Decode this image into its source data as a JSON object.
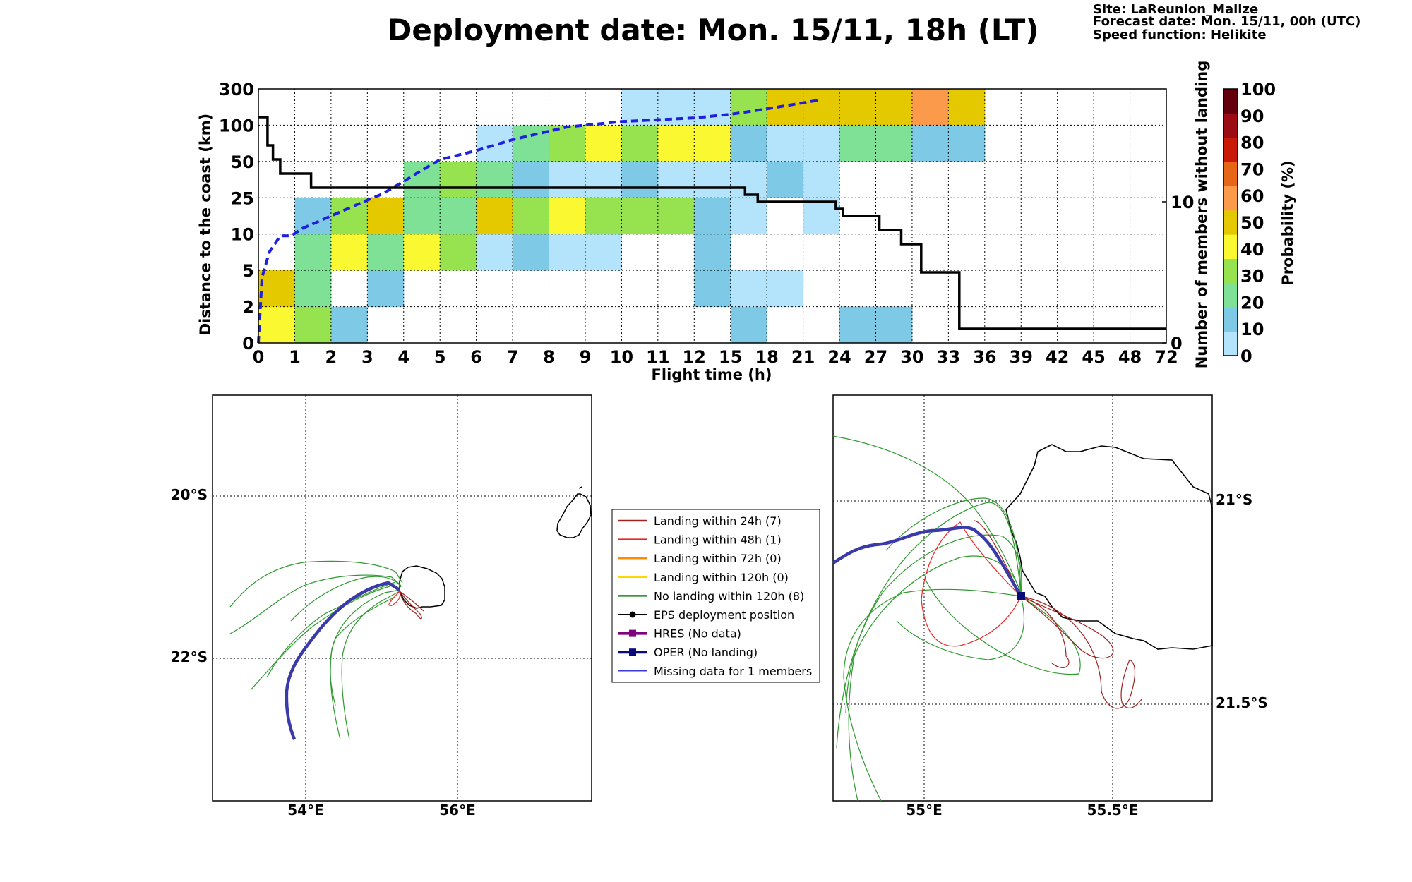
{
  "header": {
    "title": "Deployment date: Mon. 15/11, 18h (LT)",
    "site": "Site: LaReunion_Malize",
    "forecast": "Forecast date: Mon. 15/11, 00h (UTC)",
    "speed": "Speed function: Helikite"
  },
  "chart_data": [
    {
      "type": "heatmap",
      "xlabel": "Flight time (h)",
      "ylabel": "Distance to the coast (km)",
      "ylabel_right": "Number of members without landing",
      "colorbar_label": "Probability (%)",
      "x_ticks": [
        "0",
        "1",
        "2",
        "3",
        "4",
        "5",
        "6",
        "7",
        "8",
        "9",
        "10",
        "11",
        "12",
        "15",
        "18",
        "21",
        "24",
        "27",
        "30",
        "33",
        "36",
        "39",
        "42",
        "45",
        "48",
        "72"
      ],
      "y_ticks": [
        "0",
        "2",
        "5",
        "10",
        "25",
        "50",
        "100",
        "300"
      ],
      "y2_ticks": [
        "0",
        "10"
      ],
      "y2_range": [
        0,
        18
      ],
      "colorbar_ticks": [
        "0",
        "10",
        "20",
        "30",
        "40",
        "50",
        "60",
        "70",
        "80",
        "90",
        "100"
      ],
      "colorbar_colors": [
        "#b3e4fb",
        "#7ecae6",
        "#7fe196",
        "#97e24f",
        "#faf830",
        "#e4c900",
        "#fb9a4a",
        "#e76517",
        "#c91a08",
        "#9b0c14",
        "#63000c"
      ],
      "grid": true,
      "cells": [
        {
          "x": 0,
          "y": 0,
          "p": 40
        },
        {
          "x": 0,
          "y": 1,
          "p": 50
        },
        {
          "x": 1,
          "y": 0,
          "p": 30
        },
        {
          "x": 1,
          "y": 1,
          "p": 20
        },
        {
          "x": 1,
          "y": 2,
          "p": 20
        },
        {
          "x": 1,
          "y": 3,
          "p": 10
        },
        {
          "x": 2,
          "y": 0,
          "p": 10
        },
        {
          "x": 2,
          "y": 2,
          "p": 40
        },
        {
          "x": 2,
          "y": 3,
          "p": 30
        },
        {
          "x": 3,
          "y": 1,
          "p": 10
        },
        {
          "x": 3,
          "y": 2,
          "p": 20
        },
        {
          "x": 3,
          "y": 3,
          "p": 50
        },
        {
          "x": 4,
          "y": 2,
          "p": 40
        },
        {
          "x": 4,
          "y": 3,
          "p": 20
        },
        {
          "x": 4,
          "y": 4,
          "p": 20
        },
        {
          "x": 5,
          "y": 2,
          "p": 30
        },
        {
          "x": 5,
          "y": 3,
          "p": 20
        },
        {
          "x": 5,
          "y": 4,
          "p": 30
        },
        {
          "x": 6,
          "y": 2,
          "p": 0
        },
        {
          "x": 6,
          "y": 3,
          "p": 50
        },
        {
          "x": 6,
          "y": 4,
          "p": 20
        },
        {
          "x": 6,
          "y": 5,
          "p": 0
        },
        {
          "x": 7,
          "y": 2,
          "p": 10
        },
        {
          "x": 7,
          "y": 3,
          "p": 30
        },
        {
          "x": 7,
          "y": 4,
          "p": 10
        },
        {
          "x": 7,
          "y": 5,
          "p": 20
        },
        {
          "x": 8,
          "y": 2,
          "p": 0
        },
        {
          "x": 8,
          "y": 3,
          "p": 40
        },
        {
          "x": 8,
          "y": 4,
          "p": 0
        },
        {
          "x": 8,
          "y": 5,
          "p": 30
        },
        {
          "x": 9,
          "y": 2,
          "p": 0
        },
        {
          "x": 9,
          "y": 3,
          "p": 30
        },
        {
          "x": 9,
          "y": 4,
          "p": 0
        },
        {
          "x": 9,
          "y": 5,
          "p": 40
        },
        {
          "x": 10,
          "y": 3,
          "p": 30
        },
        {
          "x": 10,
          "y": 4,
          "p": 10
        },
        {
          "x": 10,
          "y": 5,
          "p": 30
        },
        {
          "x": 10,
          "y": 6,
          "p": 0
        },
        {
          "x": 11,
          "y": 3,
          "p": 30
        },
        {
          "x": 11,
          "y": 4,
          "p": 0
        },
        {
          "x": 11,
          "y": 5,
          "p": 40
        },
        {
          "x": 11,
          "y": 6,
          "p": 0
        },
        {
          "x": 12,
          "y": 1,
          "p": 10
        },
        {
          "x": 12,
          "y": 2,
          "p": 10
        },
        {
          "x": 12,
          "y": 3,
          "p": 10
        },
        {
          "x": 12,
          "y": 4,
          "p": 0
        },
        {
          "x": 12,
          "y": 5,
          "p": 40
        },
        {
          "x": 12,
          "y": 6,
          "p": 0
        },
        {
          "x": 13,
          "y": 0,
          "p": 10
        },
        {
          "x": 13,
          "y": 1,
          "p": 0
        },
        {
          "x": 13,
          "y": 3,
          "p": 0
        },
        {
          "x": 13,
          "y": 4,
          "p": 0
        },
        {
          "x": 13,
          "y": 5,
          "p": 10
        },
        {
          "x": 13,
          "y": 6,
          "p": 30
        },
        {
          "x": 14,
          "y": 1,
          "p": 0
        },
        {
          "x": 14,
          "y": 4,
          "p": 10
        },
        {
          "x": 14,
          "y": 5,
          "p": 0
        },
        {
          "x": 14,
          "y": 6,
          "p": 50
        },
        {
          "x": 15,
          "y": 3,
          "p": 0
        },
        {
          "x": 15,
          "y": 4,
          "p": 0
        },
        {
          "x": 15,
          "y": 5,
          "p": 0
        },
        {
          "x": 15,
          "y": 6,
          "p": 50
        },
        {
          "x": 16,
          "y": 0,
          "p": 10
        },
        {
          "x": 16,
          "y": 5,
          "p": 20
        },
        {
          "x": 16,
          "y": 6,
          "p": 50
        },
        {
          "x": 17,
          "y": 0,
          "p": 10
        },
        {
          "x": 17,
          "y": 5,
          "p": 20
        },
        {
          "x": 17,
          "y": 6,
          "p": 50
        },
        {
          "x": 18,
          "y": 5,
          "p": 10
        },
        {
          "x": 18,
          "y": 6,
          "p": 60
        },
        {
          "x": 19,
          "y": 5,
          "p": 10
        },
        {
          "x": 19,
          "y": 6,
          "p": 50
        }
      ],
      "members_without_landing": {
        "x": [
          0,
          0.25,
          0.25,
          0.4,
          0.4,
          0.6,
          0.6,
          0.8,
          0.8,
          1.45,
          1.45,
          13.4,
          13.4,
          13.75,
          13.75,
          15.9,
          15.9,
          16.1,
          16.1,
          17.1,
          17.1,
          17.7,
          17.7,
          18.25,
          18.25,
          19.3,
          19.3,
          25
        ],
        "y": [
          16,
          16,
          14,
          14,
          13,
          13,
          12,
          12,
          12,
          12,
          11,
          11,
          10.5,
          10.5,
          10,
          10,
          9.5,
          9.5,
          9,
          9,
          8,
          8,
          7,
          7,
          5,
          5,
          1,
          1
        ]
      },
      "dashed_line": {
        "x": [
          0,
          0.1,
          0.3,
          0.6,
          0.9,
          1.2,
          2,
          2.8,
          3.4,
          4.0,
          4.4,
          5,
          6,
          7,
          8.5,
          10,
          11,
          12,
          13,
          14,
          15.5
        ],
        "y": [
          0,
          1.8,
          2.5,
          2.95,
          2.95,
          3.15,
          3.5,
          3.85,
          4.1,
          4.45,
          4.7,
          5.05,
          5.3,
          5.6,
          5.95,
          6.1,
          6.15,
          6.2,
          6.3,
          6.45,
          6.7
        ]
      }
    }
  ],
  "legend": {
    "items": [
      {
        "label": "Landing within 24h (7)",
        "color": "#a0221f",
        "style": "line"
      },
      {
        "label": "Landing within 48h (1)",
        "color": "#ee2222",
        "style": "line"
      },
      {
        "label": "Landing within 72h (0)",
        "color": "#ff8c00",
        "style": "line"
      },
      {
        "label": "Landing within 120h (0)",
        "color": "#ffd700",
        "style": "line"
      },
      {
        "label": "No landing within 120h (8)",
        "color": "#1e8a1e",
        "style": "line"
      },
      {
        "label": "EPS deployment position",
        "color": "#000000",
        "style": "dot"
      },
      {
        "label": "HRES (No data)",
        "color": "#800080",
        "style": "square"
      },
      {
        "label": "OPER (No landing)",
        "color": "#0a0a7a",
        "style": "square"
      },
      {
        "label": "Missing data for 1 members",
        "color": "#3b3bdd",
        "style": "thin"
      }
    ]
  },
  "map_left": {
    "lon_ticks": [
      "54°E",
      "56°E"
    ],
    "lat_ticks": [
      "20°S",
      "22°S"
    ]
  },
  "map_right": {
    "lon_ticks": [
      "55°E",
      "55.5°E"
    ],
    "lat_ticks": [
      "21°S",
      "21.5°S"
    ]
  }
}
